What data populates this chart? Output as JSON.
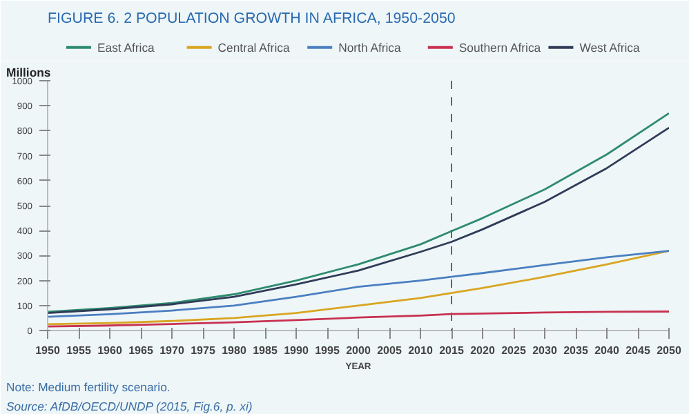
{
  "chart_data": {
    "type": "line",
    "title": "FIGURE 6. 2   POPULATION GROWTH IN AFRICA, 1950-2050",
    "xlabel": "YEAR",
    "ylabel": "Millions",
    "x": [
      1950,
      1960,
      1970,
      1980,
      1990,
      2000,
      2010,
      2015,
      2020,
      2030,
      2040,
      2050
    ],
    "series": [
      {
        "name": "East Africa",
        "color": "#2e8b6e",
        "values": [
          75,
          90,
          110,
          145,
          200,
          265,
          345,
          398,
          450,
          565,
          705,
          870
        ]
      },
      {
        "name": "Central Africa",
        "color": "#d9a520",
        "values": [
          25,
          30,
          38,
          50,
          70,
          100,
          130,
          150,
          170,
          215,
          265,
          319
        ]
      },
      {
        "name": "North Africa",
        "color": "#4a7fc1",
        "values": [
          55,
          65,
          80,
          100,
          135,
          175,
          200,
          215,
          230,
          262,
          293,
          319
        ]
      },
      {
        "name": "Southern Africa",
        "color": "#c8304f",
        "values": [
          16,
          20,
          26,
          33,
          42,
          52,
          60,
          66,
          68,
          72,
          75,
          76
        ]
      },
      {
        "name": "West Africa",
        "color": "#2f3b57",
        "values": [
          70,
          85,
          105,
          135,
          185,
          240,
          315,
          355,
          405,
          515,
          650,
          812
        ]
      }
    ],
    "xlim": [
      1950,
      2050
    ],
    "xticks": [
      1950,
      1955,
      1960,
      1965,
      1970,
      1975,
      1980,
      1985,
      1990,
      1995,
      2000,
      2005,
      2010,
      2015,
      2020,
      2025,
      2030,
      2035,
      2040,
      2045,
      2050
    ],
    "ylim": [
      0,
      1000
    ],
    "yticks": [
      0,
      100,
      200,
      300,
      400,
      500,
      600,
      700,
      800,
      900,
      1000
    ],
    "ref_lines": [
      {
        "axis": "x",
        "value": 2015,
        "color": "#666666",
        "line_style": "dashed"
      }
    ],
    "legend": "top",
    "grid": false,
    "annotations": [
      "Note: Medium fertility scenario.",
      "Source: AfDB/OECD/UNDP (2015, Fig.6, p. xi)"
    ]
  }
}
